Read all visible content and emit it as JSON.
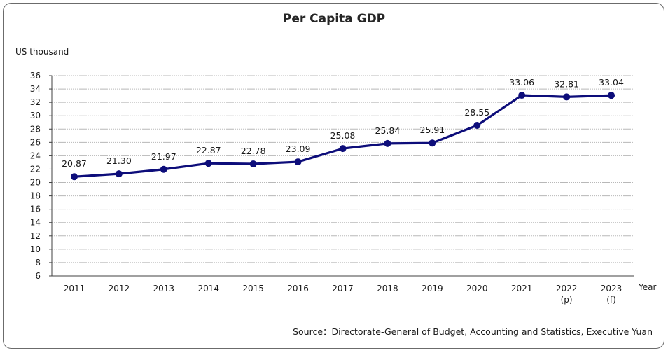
{
  "chart_data": {
    "type": "line",
    "title": "Per Capita GDP",
    "ylabel": "US thousand",
    "xlabel": "Year",
    "source": "Source：Directorate-General of Budget, Accounting and Statistics, Executive Yuan",
    "ylim": [
      6,
      36
    ],
    "yticks": [
      "6",
      "8",
      "10",
      "12",
      "14",
      "16",
      "18",
      "20",
      "22",
      "24",
      "26",
      "28",
      "30",
      "32",
      "34",
      "36"
    ],
    "grid": true,
    "categories": [
      {
        "year": "2011",
        "note": ""
      },
      {
        "year": "2012",
        "note": ""
      },
      {
        "year": "2013",
        "note": ""
      },
      {
        "year": "2014",
        "note": ""
      },
      {
        "year": "2015",
        "note": ""
      },
      {
        "year": "2016",
        "note": ""
      },
      {
        "year": "2017",
        "note": ""
      },
      {
        "year": "2018",
        "note": ""
      },
      {
        "year": "2019",
        "note": ""
      },
      {
        "year": "2020",
        "note": ""
      },
      {
        "year": "2021",
        "note": ""
      },
      {
        "year": "2022",
        "note": "(p)"
      },
      {
        "year": "2023",
        "note": "(f)"
      }
    ],
    "series": [
      {
        "values": [
          20.87,
          21.3,
          21.97,
          22.87,
          22.78,
          23.09,
          25.08,
          25.84,
          25.91,
          28.55,
          33.06,
          32.81,
          33.04
        ],
        "labels": [
          "20.87",
          "21.30",
          "21.97",
          "22.87",
          "22.78",
          "23.09",
          "25.08",
          "25.84",
          "25.91",
          "28.55",
          "33.06",
          "32.81",
          "33.04"
        ],
        "color": "#0d0d7a"
      }
    ],
    "gridColor": "#b8b8b8",
    "axisColor": "#404040"
  }
}
